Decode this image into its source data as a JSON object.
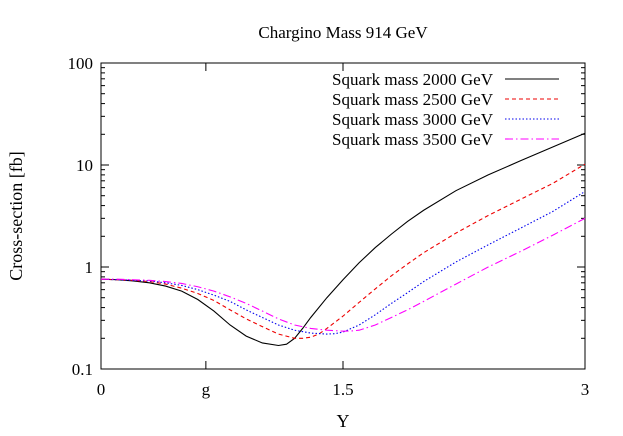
{
  "chart_data": {
    "type": "line",
    "title": "Chargino Mass 914 GeV",
    "xlabel": "Y",
    "ylabel": "Cross-section [fb]",
    "xlim": [
      0,
      3
    ],
    "ylim": [
      0.1,
      100
    ],
    "yscale": "log",
    "grid": false,
    "legend_position": "top-right",
    "x_ticks": [
      {
        "value": 0,
        "label": "0"
      },
      {
        "value": 0.65,
        "label": "g"
      },
      {
        "value": 1.5,
        "label": "1.5"
      },
      {
        "value": 3,
        "label": "3"
      }
    ],
    "y_ticks": [
      {
        "value": 0.1,
        "label": "0.1"
      },
      {
        "value": 1,
        "label": "1"
      },
      {
        "value": 10,
        "label": "10"
      },
      {
        "value": 100,
        "label": "100"
      }
    ],
    "series": [
      {
        "name": "Squark mass 2000 GeV",
        "color": "#000000",
        "dash": "solid",
        "x": [
          0,
          0.1,
          0.2,
          0.3,
          0.4,
          0.5,
          0.6,
          0.7,
          0.8,
          0.9,
          1.0,
          1.1,
          1.15,
          1.2,
          1.25,
          1.3,
          1.4,
          1.5,
          1.6,
          1.7,
          1.8,
          1.9,
          2.0,
          2.2,
          2.4,
          2.6,
          2.8,
          3.0
        ],
        "y": [
          0.76,
          0.75,
          0.73,
          0.7,
          0.65,
          0.58,
          0.48,
          0.37,
          0.27,
          0.21,
          0.18,
          0.17,
          0.175,
          0.2,
          0.25,
          0.32,
          0.5,
          0.75,
          1.1,
          1.55,
          2.1,
          2.8,
          3.6,
          5.6,
          8.0,
          11.0,
          15.0,
          20.5
        ]
      },
      {
        "name": "Squark mass 2500 GeV",
        "color": "#ee0000",
        "dash": "4,3",
        "x": [
          0,
          0.1,
          0.2,
          0.3,
          0.4,
          0.5,
          0.6,
          0.7,
          0.8,
          0.9,
          1.0,
          1.1,
          1.2,
          1.25,
          1.3,
          1.35,
          1.4,
          1.5,
          1.6,
          1.7,
          1.8,
          1.9,
          2.0,
          2.2,
          2.4,
          2.6,
          2.8,
          3.0
        ],
        "y": [
          0.76,
          0.75,
          0.74,
          0.72,
          0.68,
          0.62,
          0.55,
          0.47,
          0.38,
          0.31,
          0.26,
          0.22,
          0.2,
          0.2,
          0.205,
          0.22,
          0.25,
          0.33,
          0.45,
          0.61,
          0.82,
          1.07,
          1.38,
          2.15,
          3.2,
          4.6,
          6.6,
          10.2
        ]
      },
      {
        "name": "Squark mass 3000 GeV",
        "color": "#0000ee",
        "dash": "1.5,2",
        "x": [
          0,
          0.1,
          0.2,
          0.3,
          0.4,
          0.5,
          0.6,
          0.7,
          0.8,
          0.9,
          1.0,
          1.1,
          1.2,
          1.3,
          1.4,
          1.45,
          1.5,
          1.6,
          1.7,
          1.8,
          1.9,
          2.0,
          2.2,
          2.4,
          2.6,
          2.8,
          3.0
        ],
        "y": [
          0.76,
          0.75,
          0.74,
          0.73,
          0.7,
          0.66,
          0.6,
          0.53,
          0.46,
          0.38,
          0.32,
          0.27,
          0.24,
          0.225,
          0.22,
          0.222,
          0.23,
          0.27,
          0.34,
          0.44,
          0.56,
          0.72,
          1.12,
          1.65,
          2.4,
          3.5,
          5.5
        ]
      },
      {
        "name": "Squark mass 3500 GeV",
        "color": "#ff00ff",
        "dash": "8,3,1.5,3",
        "x": [
          0,
          0.1,
          0.2,
          0.3,
          0.4,
          0.5,
          0.6,
          0.7,
          0.8,
          0.9,
          1.0,
          1.1,
          1.2,
          1.3,
          1.4,
          1.5,
          1.55,
          1.6,
          1.7,
          1.8,
          1.9,
          2.0,
          2.2,
          2.4,
          2.6,
          2.8,
          3.0
        ],
        "y": [
          0.76,
          0.76,
          0.75,
          0.74,
          0.72,
          0.69,
          0.64,
          0.58,
          0.51,
          0.44,
          0.37,
          0.31,
          0.27,
          0.25,
          0.24,
          0.235,
          0.236,
          0.24,
          0.27,
          0.32,
          0.38,
          0.46,
          0.68,
          1.0,
          1.42,
          2.05,
          3.0
        ]
      }
    ]
  }
}
